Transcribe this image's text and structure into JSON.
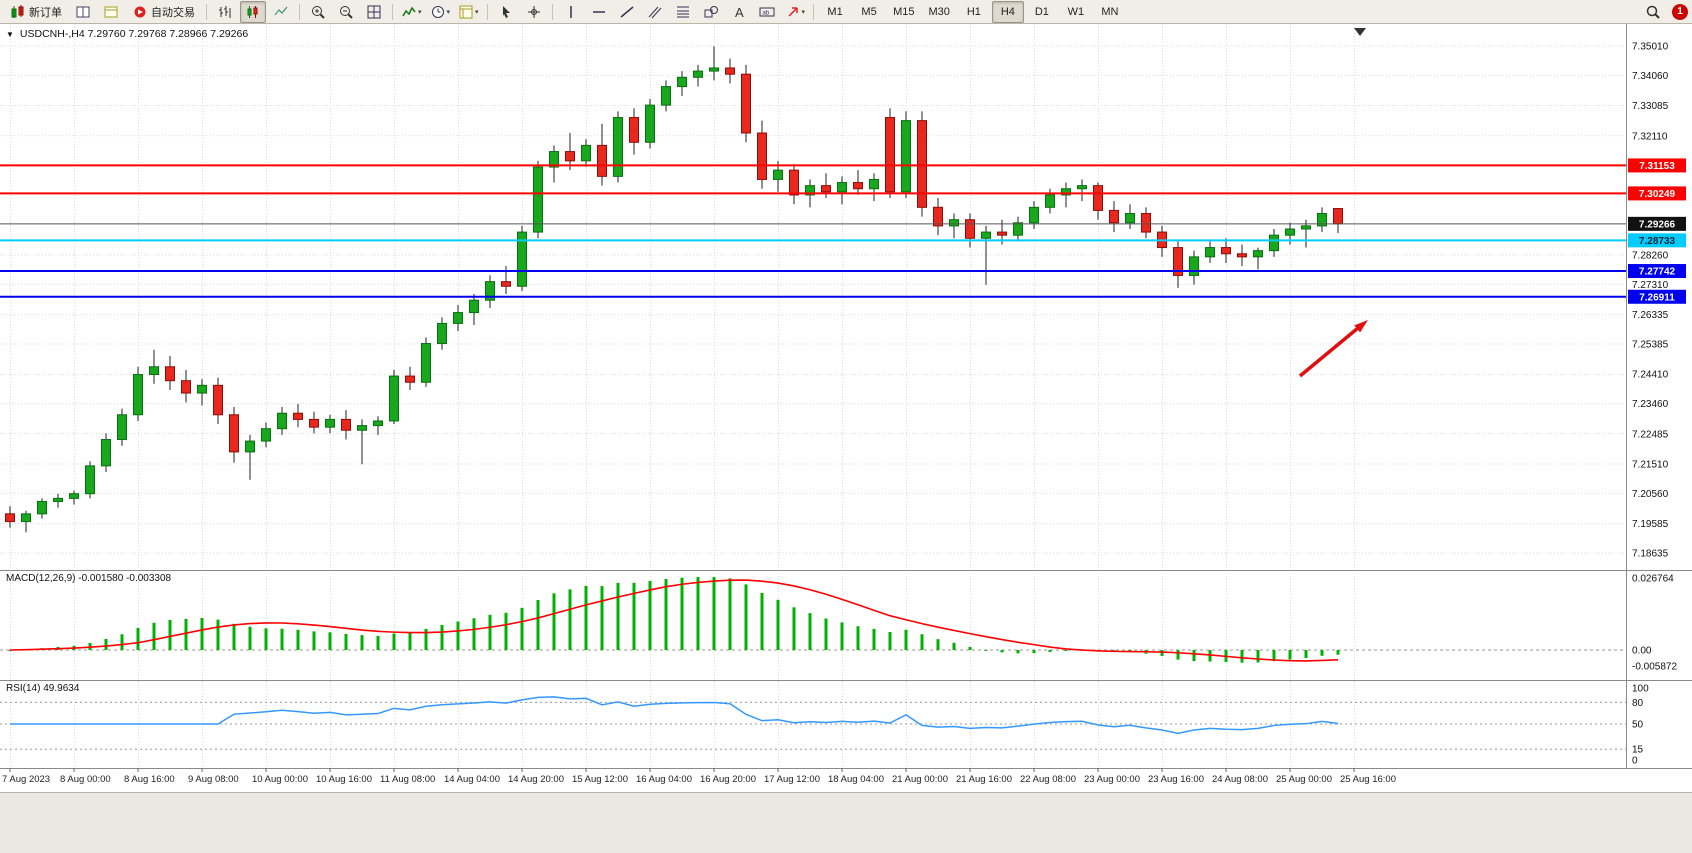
{
  "window": {
    "title": "USDCNH-,H4  7.29760 7.29768 7.28966 7.29266",
    "dropdown_glyph": "▼"
  },
  "toolbar": {
    "groups": [
      {
        "name": "trade",
        "buttons": [
          {
            "name": "new-order-button",
            "icon": "new-order",
            "label": "新订单"
          },
          {
            "name": "charts-window-button",
            "icon": "window"
          },
          {
            "name": "profiles-button",
            "icon": "profiles"
          },
          {
            "name": "auto-trading-button",
            "icon": "autotrade",
            "label": "自动交易"
          }
        ]
      },
      {
        "name": "chart-types",
        "buttons": [
          {
            "name": "bar-chart-button",
            "icon": "bars"
          },
          {
            "name": "candlestick-chart-button",
            "icon": "candles",
            "active": true
          },
          {
            "name": "line-chart-button",
            "icon": "line"
          }
        ]
      },
      {
        "name": "zoom",
        "buttons": [
          {
            "name": "zoom-in-button",
            "icon": "zoom-in"
          },
          {
            "name": "zoom-out-button",
            "icon": "zoom-out"
          },
          {
            "name": "tile-windows-button",
            "icon": "tile"
          }
        ]
      },
      {
        "name": "chart-menus",
        "buttons": [
          {
            "name": "indicators-button",
            "icon": "indicators",
            "dropdown": true
          },
          {
            "name": "periods-button",
            "icon": "clock",
            "dropdown": true
          },
          {
            "name": "templates-button",
            "icon": "template",
            "dropdown": true
          }
        ]
      },
      {
        "name": "cursor-tools",
        "buttons": [
          {
            "name": "cursor-button",
            "icon": "cursor"
          },
          {
            "name": "crosshair-button",
            "icon": "crosshair"
          }
        ]
      },
      {
        "name": "drawing-tools",
        "buttons": [
          {
            "name": "vertical-line-button",
            "icon": "vline"
          },
          {
            "name": "horizontal-line-button",
            "icon": "hline"
          },
          {
            "name": "trendline-button",
            "icon": "trend"
          },
          {
            "name": "equidistant-channel-button",
            "icon": "channel"
          },
          {
            "name": "fibonacci-button",
            "icon": "fibo"
          },
          {
            "name": "shapes-button",
            "icon": "shapes"
          },
          {
            "name": "text-button",
            "icon": "text"
          },
          {
            "name": "text-label-button",
            "icon": "label"
          },
          {
            "name": "arrows-button",
            "icon": "arrows",
            "dropdown": true
          }
        ]
      },
      {
        "name": "timeframes",
        "buttons": [
          {
            "name": "timeframe-m1-button",
            "label": "M1"
          },
          {
            "name": "timeframe-m5-button",
            "label": "M5"
          },
          {
            "name": "timeframe-m15-button",
            "label": "M15"
          },
          {
            "name": "timeframe-m30-button",
            "label": "M30"
          },
          {
            "name": "timeframe-h1-button",
            "label": "H1"
          },
          {
            "name": "timeframe-h4-button",
            "label": "H4",
            "active": true
          },
          {
            "name": "timeframe-d1-button",
            "label": "D1"
          },
          {
            "name": "timeframe-w1-button",
            "label": "W1"
          },
          {
            "name": "timeframe-mn-button",
            "label": "MN"
          }
        ]
      }
    ],
    "right": [
      {
        "name": "search-button",
        "icon": "magnifier"
      },
      {
        "name": "notification-badge",
        "badge_label": "1",
        "badge_color": "#cc0000"
      }
    ]
  },
  "indicators_labels": {
    "macd": "MACD(12,26,9) -0.001580 -0.003308",
    "rsi": "RSI(14) 49.9634"
  },
  "chart_data": {
    "type": "candlestick",
    "symbol": "USDCNH-",
    "timeframe": "H4",
    "current_ohlc": {
      "open": 7.2976,
      "high": 7.29768,
      "low": 7.28966,
      "close": 7.29266
    },
    "ylim": [
      7.18086,
      7.35656
    ],
    "price_ticks": [
      "7.35010",
      "7.34060",
      "7.33085",
      "7.32110",
      "7.28260",
      "7.27310",
      "7.26335",
      "7.25385",
      "7.24410",
      "7.23460",
      "7.22485",
      "7.21510",
      "7.20560",
      "7.19585",
      "7.18635"
    ],
    "x_labels": [
      "7 Aug 2023",
      "8 Aug 00:00",
      "8 Aug 16:00",
      "9 Aug 08:00",
      "10 Aug 00:00",
      "10 Aug 16:00",
      "11 Aug 08:00",
      "14 Aug 04:00",
      "14 Aug 20:00",
      "15 Aug 12:00",
      "16 Aug 04:00",
      "16 Aug 20:00",
      "17 Aug 12:00",
      "18 Aug 04:00",
      "21 Aug 00:00",
      "21 Aug 16:00",
      "22 Aug 08:00",
      "23 Aug 00:00",
      "23 Aug 16:00",
      "24 Aug 08:00",
      "25 Aug 00:00",
      "25 Aug 16:00"
    ],
    "candles": [
      [
        7.199,
        7.2015,
        7.1945,
        7.1965
      ],
      [
        7.1965,
        7.2,
        7.193,
        7.199
      ],
      [
        7.199,
        7.204,
        7.1975,
        7.203
      ],
      [
        7.203,
        7.2055,
        7.201,
        7.204
      ],
      [
        7.204,
        7.2065,
        7.202,
        7.2055
      ],
      [
        7.2055,
        7.216,
        7.204,
        7.2145
      ],
      [
        7.2145,
        7.225,
        7.2125,
        7.223
      ],
      [
        7.223,
        7.233,
        7.221,
        7.231
      ],
      [
        7.231,
        7.2465,
        7.229,
        7.244
      ],
      [
        7.244,
        7.252,
        7.241,
        7.2465
      ],
      [
        7.2465,
        7.25,
        7.239,
        7.242
      ],
      [
        7.242,
        7.2455,
        7.235,
        7.238
      ],
      [
        7.238,
        7.2425,
        7.234,
        7.2405
      ],
      [
        7.2405,
        7.243,
        7.228,
        7.231
      ],
      [
        7.231,
        7.2335,
        7.2155,
        7.219
      ],
      [
        7.219,
        7.2245,
        7.21,
        7.2225
      ],
      [
        7.2225,
        7.2285,
        7.2205,
        7.2265
      ],
      [
        7.2265,
        7.2335,
        7.2245,
        7.2315
      ],
      [
        7.2315,
        7.2345,
        7.227,
        7.2295
      ],
      [
        7.2295,
        7.232,
        7.225,
        7.227
      ],
      [
        7.227,
        7.231,
        7.225,
        7.2295
      ],
      [
        7.2295,
        7.2325,
        7.223,
        7.226
      ],
      [
        7.226,
        7.2295,
        7.215,
        7.2275
      ],
      [
        7.2275,
        7.2305,
        7.2245,
        7.229
      ],
      [
        7.229,
        7.2455,
        7.228,
        7.2435
      ],
      [
        7.2435,
        7.2465,
        7.239,
        7.2415
      ],
      [
        7.2415,
        7.256,
        7.24,
        7.254
      ],
      [
        7.254,
        7.2625,
        7.252,
        7.2605
      ],
      [
        7.2605,
        7.2665,
        7.258,
        7.264
      ],
      [
        7.264,
        7.27,
        7.26,
        7.268
      ],
      [
        7.268,
        7.276,
        7.2655,
        7.274
      ],
      [
        7.274,
        7.279,
        7.27,
        7.2725
      ],
      [
        7.2725,
        7.292,
        7.271,
        7.29
      ],
      [
        7.29,
        7.313,
        7.288,
        7.311
      ],
      [
        7.311,
        7.318,
        7.306,
        7.316
      ],
      [
        7.316,
        7.322,
        7.31,
        7.313
      ],
      [
        7.313,
        7.32,
        7.311,
        7.318
      ],
      [
        7.318,
        7.325,
        7.305,
        7.308
      ],
      [
        7.308,
        7.329,
        7.306,
        7.327
      ],
      [
        7.327,
        7.33,
        7.315,
        7.319
      ],
      [
        7.319,
        7.333,
        7.317,
        7.331
      ],
      [
        7.331,
        7.339,
        7.329,
        7.337
      ],
      [
        7.337,
        7.342,
        7.334,
        7.34
      ],
      [
        7.34,
        7.344,
        7.337,
        7.342
      ],
      [
        7.342,
        7.35,
        7.339,
        7.343
      ],
      [
        7.343,
        7.346,
        7.338,
        7.341
      ],
      [
        7.341,
        7.344,
        7.319,
        7.322
      ],
      [
        7.322,
        7.326,
        7.304,
        7.307
      ],
      [
        7.307,
        7.313,
        7.303,
        7.31
      ],
      [
        7.31,
        7.312,
        7.299,
        7.302
      ],
      [
        7.302,
        7.307,
        7.298,
        7.305
      ],
      [
        7.305,
        7.309,
        7.301,
        7.303
      ],
      [
        7.303,
        7.308,
        7.299,
        7.306
      ],
      [
        7.306,
        7.31,
        7.302,
        7.304
      ],
      [
        7.304,
        7.309,
        7.3,
        7.307
      ],
      [
        7.327,
        7.33,
        7.301,
        7.303
      ],
      [
        7.303,
        7.329,
        7.301,
        7.326
      ],
      [
        7.326,
        7.329,
        7.295,
        7.298
      ],
      [
        7.298,
        7.301,
        7.289,
        7.292
      ],
      [
        7.292,
        7.296,
        7.288,
        7.294
      ],
      [
        7.294,
        7.296,
        7.285,
        7.288
      ],
      [
        7.288,
        7.292,
        7.273,
        7.29
      ],
      [
        7.29,
        7.294,
        7.286,
        7.289
      ],
      [
        7.289,
        7.295,
        7.287,
        7.293
      ],
      [
        7.293,
        7.3,
        7.291,
        7.298
      ],
      [
        7.298,
        7.304,
        7.296,
        7.302
      ],
      [
        7.302,
        7.306,
        7.298,
        7.304
      ],
      [
        7.304,
        7.307,
        7.3,
        7.305
      ],
      [
        7.305,
        7.306,
        7.294,
        7.297
      ],
      [
        7.297,
        7.3,
        7.29,
        7.293
      ],
      [
        7.293,
        7.299,
        7.291,
        7.296
      ],
      [
        7.296,
        7.298,
        7.288,
        7.29
      ],
      [
        7.29,
        7.292,
        7.282,
        7.285
      ],
      [
        7.285,
        7.287,
        7.272,
        7.276
      ],
      [
        7.276,
        7.284,
        7.273,
        7.282
      ],
      [
        7.282,
        7.287,
        7.28,
        7.285
      ],
      [
        7.285,
        7.288,
        7.28,
        7.283
      ],
      [
        7.283,
        7.286,
        7.279,
        7.282
      ],
      [
        7.282,
        7.285,
        7.278,
        7.284
      ],
      [
        7.284,
        7.291,
        7.282,
        7.289
      ],
      [
        7.289,
        7.293,
        7.286,
        7.291
      ],
      [
        7.291,
        7.294,
        7.285,
        7.292
      ],
      [
        7.292,
        7.298,
        7.29,
        7.296
      ],
      [
        7.2976,
        7.2977,
        7.2897,
        7.2927
      ]
    ],
    "candle_colors": {
      "up": "#17a81e",
      "up_border": "#0b6e10",
      "down": "#e8281e",
      "down_border": "#8f0d06",
      "wick": "#222222"
    },
    "hlines": [
      {
        "price": 7.31153,
        "label": "7.31153",
        "color": "#ff0000",
        "text_color": "#ffffff"
      },
      {
        "price": 7.30249,
        "label": "7.30249",
        "color": "#ff0000",
        "text_color": "#ffffff"
      },
      {
        "price": 7.28733,
        "label": "7.28733",
        "color": "#00ccff",
        "text_color": "#00222e"
      },
      {
        "price": 7.27742,
        "label": "7.27742",
        "color": "#0000ee",
        "text_color": "#ffffff"
      },
      {
        "price": 7.26911,
        "label": "7.26911",
        "color": "#0000ee",
        "text_color": "#ffffff"
      }
    ],
    "bid": {
      "price": 7.29266,
      "label": "7.29266",
      "tag_color": "#111111",
      "line_color": "#555555"
    },
    "macd": {
      "params": [
        12,
        26,
        9
      ],
      "value": -0.00158,
      "signal": -0.003308,
      "axis": [
        {
          "label": "0.026764",
          "value": 0.026764
        },
        {
          "label": "0.00",
          "value": 0
        },
        {
          "label": "-0.005872",
          "value": -0.005872
        }
      ],
      "histogram_color": "#00b200",
      "signal_color": "#ff0000"
    },
    "rsi": {
      "period": 14,
      "value": 49.9634,
      "axis": [
        {
          "label": "100",
          "value": 100
        },
        {
          "label": "80",
          "value": 80
        },
        {
          "label": "50",
          "value": 50
        },
        {
          "label": "15",
          "value": 15
        },
        {
          "label": "0",
          "value": 0
        }
      ],
      "levels": [
        80,
        50,
        15
      ],
      "line_color": "#3399ff"
    },
    "annotations": [
      {
        "type": "arrow",
        "color": "#e01010",
        "direction": "up-right",
        "near_price": 7.265
      }
    ]
  }
}
